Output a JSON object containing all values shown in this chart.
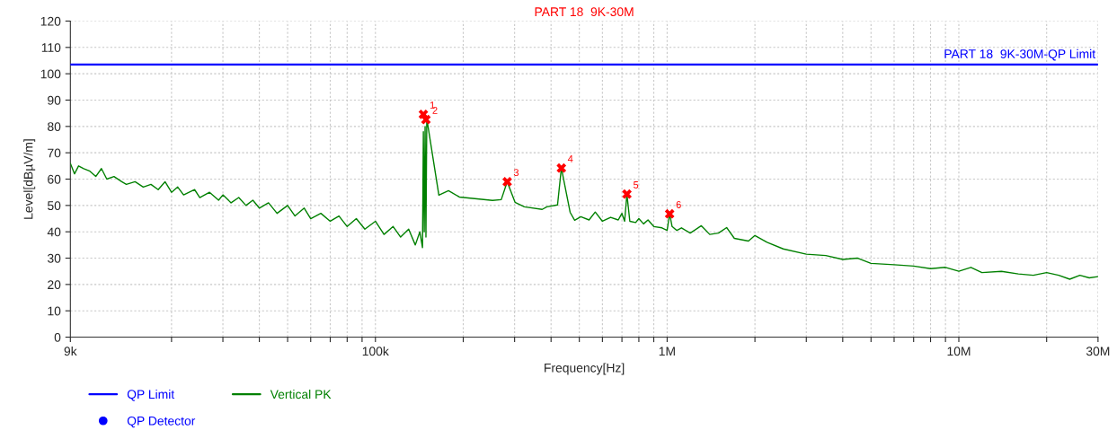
{
  "chart_data": {
    "type": "line",
    "title": "PART 18  9K-30M",
    "xlabel": "Frequency[Hz]",
    "ylabel": "Level[dBµV/m]",
    "log": "x",
    "xlim": [
      9000,
      30000000
    ],
    "ylim": [
      0,
      120
    ],
    "xticks": [
      {
        "value": 9000,
        "label": "9k"
      },
      {
        "value": 20000,
        "label": null
      },
      {
        "value": 30000,
        "label": null
      },
      {
        "value": 40000,
        "label": null
      },
      {
        "value": 50000,
        "label": null
      },
      {
        "value": 60000,
        "label": null
      },
      {
        "value": 70000,
        "label": null
      },
      {
        "value": 80000,
        "label": null
      },
      {
        "value": 90000,
        "label": null
      },
      {
        "value": 100000,
        "label": "100k"
      },
      {
        "value": 200000,
        "label": null
      },
      {
        "value": 300000,
        "label": null
      },
      {
        "value": 400000,
        "label": null
      },
      {
        "value": 500000,
        "label": null
      },
      {
        "value": 600000,
        "label": null
      },
      {
        "value": 700000,
        "label": null
      },
      {
        "value": 800000,
        "label": null
      },
      {
        "value": 900000,
        "label": null
      },
      {
        "value": 1000000,
        "label": "1M"
      },
      {
        "value": 2000000,
        "label": null
      },
      {
        "value": 3000000,
        "label": null
      },
      {
        "value": 4000000,
        "label": null
      },
      {
        "value": 5000000,
        "label": null
      },
      {
        "value": 6000000,
        "label": null
      },
      {
        "value": 7000000,
        "label": null
      },
      {
        "value": 8000000,
        "label": null
      },
      {
        "value": 9000000,
        "label": null
      },
      {
        "value": 10000000,
        "label": "10M"
      },
      {
        "value": 20000000,
        "label": null
      },
      {
        "value": 30000000,
        "label": "30M"
      }
    ],
    "yticks": [
      0,
      10,
      20,
      30,
      40,
      50,
      60,
      70,
      80,
      90,
      100,
      110,
      120
    ],
    "grid": true,
    "legend": "bottom left",
    "annotations": [
      {
        "text": "PART 18  9K-30M-QP Limit",
        "x": 30000000,
        "y": 103.5
      },
      {
        "text": "1",
        "x": 146000,
        "y": 84.6
      },
      {
        "text": "2",
        "x": 149000,
        "y": 82.6
      },
      {
        "text": "3",
        "x": 283000,
        "y": 59
      },
      {
        "text": "4",
        "x": 434000,
        "y": 64.2
      },
      {
        "text": "5",
        "x": 728000,
        "y": 54.3
      },
      {
        "text": "6",
        "x": 1020000,
        "y": 46.8
      }
    ],
    "series": [
      {
        "name": "QP Limit",
        "color": "#0000ff",
        "marker": "none",
        "x": [
          9000,
          30000000
        ],
        "values": [
          103.5,
          103.5
        ]
      },
      {
        "name": "Vertical PK",
        "color": "#008000",
        "marker": "none",
        "x": [
          9000,
          9300,
          9600,
          10000,
          10500,
          11000,
          11500,
          12000,
          12700,
          13500,
          14000,
          15000,
          16000,
          17000,
          18000,
          19000,
          20000,
          21000,
          22000,
          24000,
          25000,
          27000,
          29000,
          30000,
          32000,
          34000,
          36000,
          38000,
          40000,
          43000,
          46000,
          50000,
          53000,
          57000,
          60000,
          65000,
          70000,
          75000,
          80000,
          86000,
          92000,
          100000,
          107000,
          115000,
          122000,
          130000,
          137000,
          142000,
          145000,
          146000,
          147000,
          148000,
          149000,
          150000,
          165000,
          178000,
          194000,
          252000,
          270000,
          283000,
          301000,
          324000,
          373000,
          387000,
          421000,
          434000,
          465000,
          482000,
          506000,
          540000,
          567000,
          600000,
          640000,
          680000,
          700000,
          715000,
          728000,
          745000,
          780000,
          800000,
          830000,
          860000,
          900000,
          960000,
          1000000,
          1020000,
          1040000,
          1080000,
          1120000,
          1200000,
          1310000,
          1400000,
          1500000,
          1600000,
          1700000,
          1900000,
          2000000,
          2200000,
          2500000,
          3000000,
          3500000,
          4000000,
          4500000,
          5000000,
          6000000,
          7000000,
          8000000,
          9000000,
          10000000,
          11000000,
          12000000,
          14000000,
          16000000,
          18000000,
          20000000,
          22000000,
          24000000,
          26000000,
          28000000,
          30000000
        ],
        "values": [
          66,
          62,
          65,
          64,
          63,
          61,
          64,
          60,
          61,
          59,
          58,
          59,
          57,
          58,
          56,
          59,
          55,
          57,
          54,
          56,
          53,
          55,
          52,
          54,
          51,
          53,
          50,
          52,
          49,
          51,
          47,
          50,
          46,
          49,
          45,
          47,
          44,
          46,
          42,
          45,
          41,
          44,
          39,
          42,
          38,
          41,
          35,
          40,
          34,
          78,
          40,
          80,
          38,
          83,
          53.9,
          55.6,
          53.2,
          51.9,
          52.2,
          59,
          51.2,
          49.5,
          48.5,
          49.5,
          50.2,
          64.2,
          47.4,
          44.4,
          45.7,
          44.5,
          47.5,
          44,
          45.5,
          44.5,
          47,
          44,
          54.3,
          44,
          43.5,
          45,
          43,
          44.5,
          42,
          41.5,
          40.5,
          46.8,
          42,
          40.5,
          41.5,
          39.5,
          42.3,
          39,
          39.5,
          41.6,
          37.5,
          36.5,
          38.6,
          36,
          33.5,
          31.5,
          31,
          29.5,
          30,
          28,
          27.5,
          27,
          26,
          26.5,
          25,
          26.5,
          24.5,
          25,
          24,
          23.5,
          24.5,
          23.5,
          22,
          23.5,
          22.5,
          23
        ]
      },
      {
        "name": "QP Detector",
        "type": "scatter",
        "color": "#0000ff",
        "marker": "circle"
      },
      {
        "type": "scatter",
        "color": "#ff0000",
        "marker": "cross",
        "x": [
          146000,
          149000,
          283000,
          434000,
          728000,
          1020000
        ],
        "values": [
          84.6,
          82.6,
          59,
          64.2,
          54.3,
          46.8
        ]
      }
    ]
  }
}
